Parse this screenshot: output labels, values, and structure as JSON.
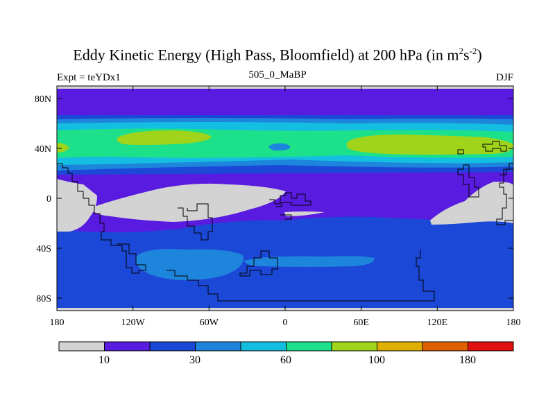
{
  "title": {
    "main": "Eddy Kinetic Energy (High Pass, Bloomfield) at 200 hPa (in m",
    "sup1": "2",
    "mid": "s",
    "sup2": "-2",
    "end": ")"
  },
  "subtitle": "505_0_MaBP",
  "left_label": "Expt = teYDx1",
  "right_label": "DJF",
  "map": {
    "lon_ticks": [
      "180",
      "120W",
      "60W",
      "0",
      "60E",
      "120E",
      "180"
    ],
    "lat_ticks": [
      "80N",
      "40N",
      "0",
      "40S",
      "80S"
    ]
  },
  "colorbar": {
    "colors": [
      "#d3d3d3",
      "#5a1be0",
      "#1c48d8",
      "#1e85dc",
      "#14bee0",
      "#1ce08a",
      "#a0d41a",
      "#e0b000",
      "#e06000",
      "#e01010"
    ],
    "labels": [
      "10",
      "30",
      "60",
      "100",
      "180"
    ]
  },
  "colors": {
    "land_outline": "#000000"
  }
}
